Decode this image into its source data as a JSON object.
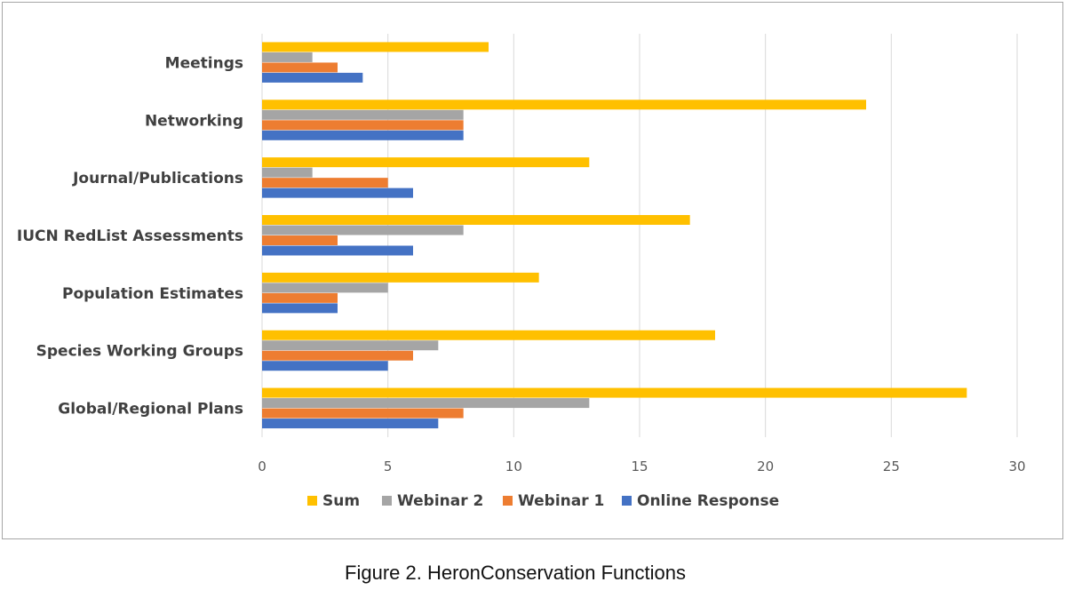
{
  "caption": "Figure 2. HeronConservation Functions",
  "chart_data": {
    "type": "bar",
    "orientation": "horizontal",
    "categories": [
      "Meetings",
      "Networking",
      "Journal/Publications",
      "IUCN RedList Assessments",
      "Population Estimates",
      "Species Working Groups",
      "Global/Regional Plans"
    ],
    "series": [
      {
        "name": "Sum",
        "color": "#ffc000",
        "values": [
          9,
          24,
          13,
          17,
          11,
          18,
          28
        ]
      },
      {
        "name": "Webinar 2",
        "color": "#a5a5a5",
        "values": [
          2,
          8,
          2,
          8,
          5,
          7,
          13
        ]
      },
      {
        "name": "Webinar 1",
        "color": "#ed7d31",
        "values": [
          3,
          8,
          5,
          3,
          3,
          6,
          8
        ]
      },
      {
        "name": "Online Response",
        "color": "#4472c4",
        "values": [
          4,
          8,
          6,
          6,
          3,
          5,
          7
        ]
      }
    ],
    "xlim": [
      0,
      30
    ],
    "xticks": [
      0,
      5,
      10,
      15,
      20,
      25,
      30
    ],
    "grid": "vertical",
    "legend": "bottom"
  }
}
